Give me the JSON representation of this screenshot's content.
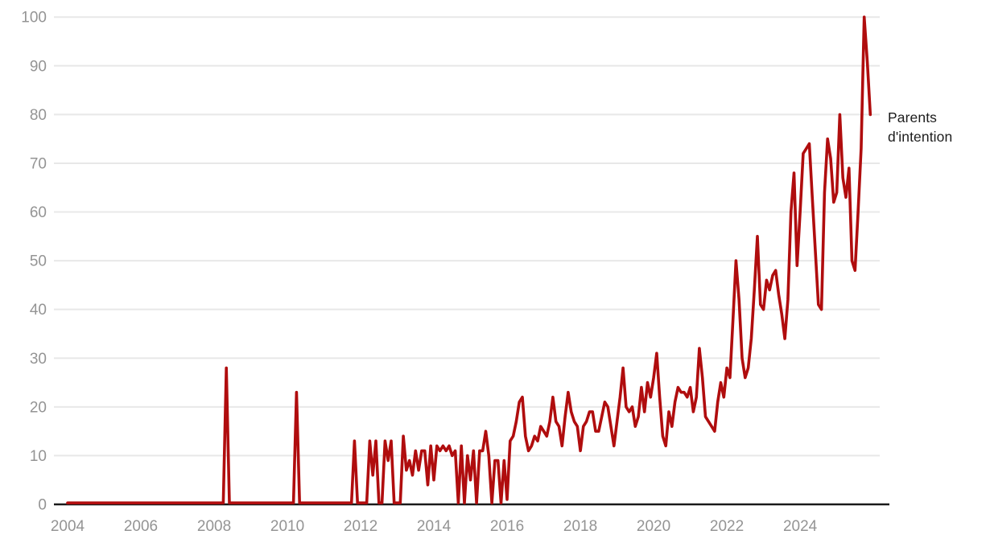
{
  "page": {
    "background": "#ffffff"
  },
  "chart_data": {
    "type": "line",
    "title": "",
    "xlabel": "",
    "ylabel": "",
    "grid": true,
    "ylim": [
      0,
      100
    ],
    "y_ticks": [
      "0",
      "10",
      "20",
      "30",
      "40",
      "50",
      "60",
      "70",
      "80",
      "90",
      "100"
    ],
    "x_ticks": [
      "2004",
      "2006",
      "2008",
      "2010",
      "2012",
      "2014",
      "2016",
      "2018",
      "2020",
      "2022",
      "2024"
    ],
    "annotation": "Parents d'intention",
    "legend_position": "right-of-line-end",
    "frequency": "monthly",
    "x_start": "2004-01",
    "x_end": "2025-12",
    "series": [
      {
        "name": "Parents d'intention",
        "color": "#b00d0e",
        "values_by_year": {
          "2004": [
            0,
            0,
            0,
            0,
            0,
            0,
            0,
            0,
            0,
            0,
            0,
            0
          ],
          "2005": [
            0,
            0,
            0,
            0,
            0,
            0,
            0,
            0,
            0,
            0,
            0,
            0
          ],
          "2006": [
            0,
            0,
            0,
            0,
            0,
            0,
            0,
            0,
            0,
            0,
            0,
            0
          ],
          "2007": [
            0,
            0,
            0,
            0,
            0,
            0,
            0,
            0,
            0,
            0,
            0,
            0
          ],
          "2008": [
            0,
            0,
            0,
            0,
            28,
            0,
            0,
            0,
            0,
            0,
            0,
            0
          ],
          "2009": [
            0,
            0,
            0,
            0,
            0,
            0,
            0,
            0,
            0,
            0,
            0,
            0
          ],
          "2010": [
            0,
            0,
            0,
            23,
            0,
            0,
            0,
            0,
            0,
            0,
            0,
            0
          ],
          "2011": [
            0,
            0,
            0,
            0,
            0,
            0,
            0,
            0,
            0,
            0,
            13,
            0
          ],
          "2012": [
            0,
            0,
            0,
            13,
            6,
            13,
            0,
            0,
            13,
            9,
            13,
            0
          ],
          "2013": [
            0,
            0,
            14,
            7,
            9,
            6,
            11,
            7,
            11,
            11,
            4,
            12
          ],
          "2014": [
            5,
            12,
            11,
            12,
            11,
            12,
            10,
            11,
            0,
            12,
            0,
            10
          ],
          "2015": [
            5,
            11,
            0,
            11,
            11,
            15,
            10,
            0,
            9,
            9,
            0,
            9
          ],
          "2016": [
            1,
            13,
            14,
            17,
            21,
            22,
            14,
            11,
            12,
            14,
            13,
            16
          ],
          "2017": [
            15,
            14,
            17,
            22,
            17,
            16,
            12,
            18,
            23,
            19,
            17,
            16
          ],
          "2018": [
            11,
            16,
            17,
            19,
            19,
            15,
            15,
            18,
            21,
            20,
            16,
            12
          ],
          "2019": [
            17,
            22,
            28,
            20,
            19,
            20,
            16,
            18,
            24,
            19,
            25,
            22
          ],
          "2020": [
            26,
            31,
            22,
            14,
            12,
            19,
            16,
            21,
            24,
            23,
            23,
            22
          ],
          "2021": [
            24,
            19,
            22,
            32,
            26,
            18,
            17,
            16,
            15,
            21,
            25,
            22
          ],
          "2022": [
            28,
            26,
            38,
            50,
            42,
            30,
            26,
            28,
            34,
            44,
            55,
            41
          ],
          "2023": [
            40,
            46,
            44,
            47,
            48,
            43,
            39,
            34,
            42,
            60,
            68,
            49
          ],
          "2024": [
            60,
            72,
            73,
            74,
            63,
            52,
            41,
            40,
            64,
            75,
            71,
            62
          ],
          "2025": [
            64,
            80,
            67,
            63,
            69,
            50,
            48,
            60,
            73,
            100,
            91,
            80
          ]
        }
      }
    ]
  },
  "colors": {
    "line": "#b00d0e",
    "axis_line": "#1a1a1a",
    "tick_label": "#949494",
    "gridline": "#e8e8e8",
    "annotation_text": "#1d1d1d"
  }
}
